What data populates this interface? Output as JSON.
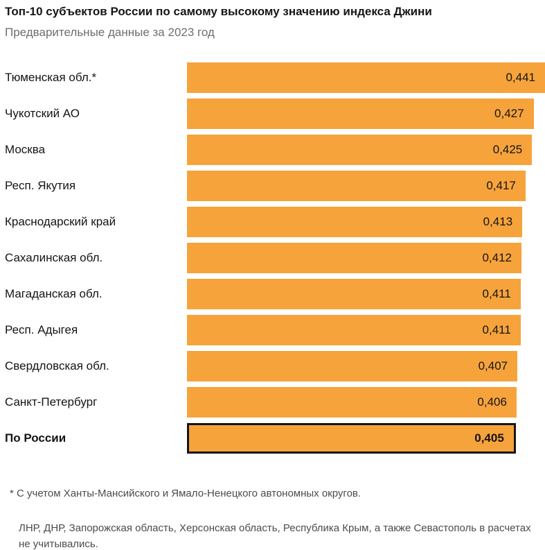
{
  "header": {
    "title": "Топ-10 субъектов России по самому высокому значению индекса Джини",
    "subtitle": "Предварительные данные за 2023 год"
  },
  "chart_data": {
    "type": "bar",
    "orientation": "horizontal",
    "title": "Топ-10 субъектов России по самому высокому значению индекса Джини",
    "subtitle": "Предварительные данные за 2023 год",
    "categories": [
      "Тюменская обл.*",
      "Чукотский АО",
      "Москва",
      "Респ. Якутия",
      "Краснодарский край",
      "Сахалинская обл.",
      "Магаданская обл.",
      "Респ. Адыгея",
      "Свердловская обл.",
      "Санкт-Петербург",
      "По России"
    ],
    "values": [
      0.441,
      0.427,
      0.425,
      0.417,
      0.413,
      0.412,
      0.411,
      0.411,
      0.407,
      0.406,
      0.405
    ],
    "value_labels": [
      "0,441",
      "0,427",
      "0,425",
      "0,417",
      "0,413",
      "0,412",
      "0,411",
      "0,411",
      "0,407",
      "0,406",
      "0,405"
    ],
    "highlight_index": 10,
    "bar_color": "#F6A33C",
    "highlight_border_color": "#141414",
    "xlim": [
      0,
      0.441
    ],
    "grid": false,
    "legend": "none"
  },
  "footnotes": {
    "note1": "* С учетом Ханты-Мансийского и Ямало-Ненецкого автономных округов.",
    "note2": "ЛНР, ДНР, Запорожская область, Херсонская область, Республика Крым, а также Севасто­поль в расчетах не учитывались."
  }
}
